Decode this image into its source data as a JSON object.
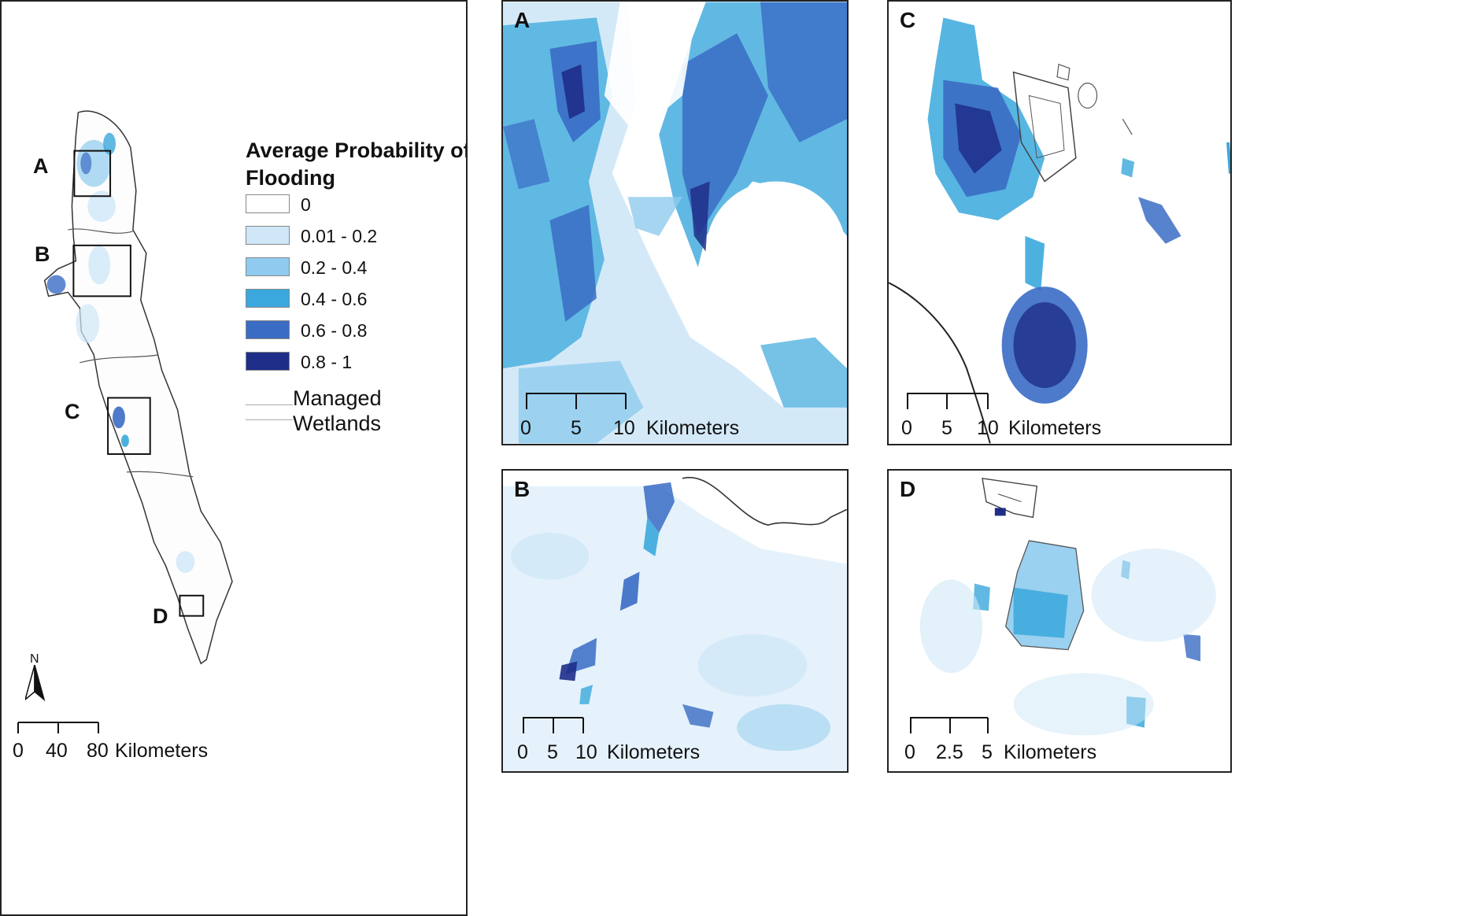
{
  "legend": {
    "title": "Average Probability of Flooding",
    "classes": [
      {
        "label": "0",
        "color": "#ffffff"
      },
      {
        "label": "0.01 - 0.2",
        "color": "#cfe7f7"
      },
      {
        "label": "0.2 - 0.4",
        "color": "#8fcbee"
      },
      {
        "label": "0.4 - 0.6",
        "color": "#3aa8dc"
      },
      {
        "label": "0.6 - 0.8",
        "color": "#3a6cc4"
      },
      {
        "label": "0.8 - 1",
        "color": "#1e2e88"
      }
    ],
    "wetlands_label": "Managed Wetlands"
  },
  "overview": {
    "inset_labels": [
      "A",
      "B",
      "C",
      "D"
    ],
    "north_label": "N",
    "scale": {
      "ticks": [
        "0",
        "40",
        "80"
      ],
      "unit": "Kilometers"
    }
  },
  "panels": {
    "A": {
      "letter": "A",
      "scale": {
        "ticks": [
          "0",
          "5",
          "10"
        ],
        "unit": "Kilometers"
      }
    },
    "B": {
      "letter": "B",
      "scale": {
        "ticks": [
          "0",
          "5",
          "10"
        ],
        "unit": "Kilometers"
      }
    },
    "C": {
      "letter": "C",
      "scale": {
        "ticks": [
          "0",
          "5",
          "10"
        ],
        "unit": "Kilometers"
      }
    },
    "D": {
      "letter": "D",
      "scale": {
        "ticks": [
          "0",
          "2.5",
          "5"
        ],
        "unit": "Kilometers"
      }
    }
  }
}
